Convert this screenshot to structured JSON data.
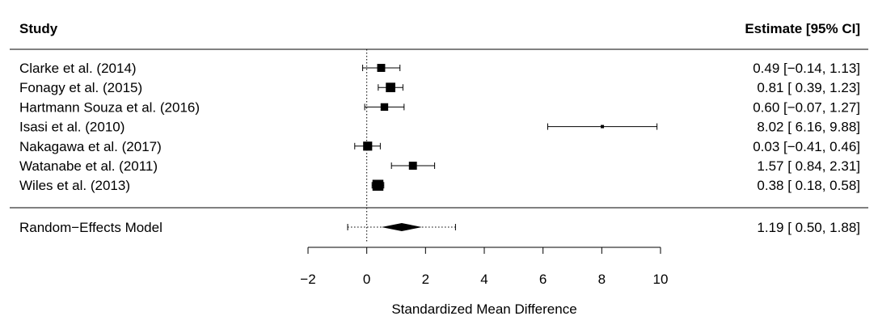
{
  "chart_data": {
    "type": "forest",
    "headers": {
      "study": "Study",
      "estimate": "Estimate [95% CI]"
    },
    "xlabel": "Standardized Mean Difference",
    "xlim": [
      -2,
      10
    ],
    "xticks": [
      "−2",
      "0",
      "2",
      "4",
      "6",
      "8",
      "10"
    ],
    "xtick_values": [
      -2,
      0,
      2,
      4,
      6,
      8,
      10
    ],
    "reference_line": 0,
    "studies": [
      {
        "label": "Clarke et al. (2014)",
        "est": 0.49,
        "lo": -0.14,
        "hi": 1.13,
        "weight": 0.55,
        "text": "0.49 [−0.14, 1.13]"
      },
      {
        "label": "Fonagy et al. (2015)",
        "est": 0.81,
        "lo": 0.39,
        "hi": 1.23,
        "weight": 0.65,
        "text": "0.81 [ 0.39, 1.23]"
      },
      {
        "label": "Hartmann Souza et al. (2016)",
        "est": 0.6,
        "lo": -0.07,
        "hi": 1.27,
        "weight": 0.52,
        "text": "0.60 [−0.07, 1.27]"
      },
      {
        "label": "Isasi et al. (2010)",
        "est": 8.02,
        "lo": 6.16,
        "hi": 9.88,
        "weight": 0.18,
        "text": "8.02 [ 6.16, 9.88]"
      },
      {
        "label": "Nakagawa et al. (2017)",
        "est": 0.03,
        "lo": -0.41,
        "hi": 0.46,
        "weight": 0.62,
        "text": "0.03 [−0.41, 0.46]"
      },
      {
        "label": "Watanabe et al. (2011)",
        "est": 1.57,
        "lo": 0.84,
        "hi": 2.31,
        "weight": 0.55,
        "text": "1.57 [ 0.84, 2.31]"
      },
      {
        "label": "Wiles et al. (2013)",
        "est": 0.38,
        "lo": 0.18,
        "hi": 0.58,
        "weight": 0.75,
        "text": "0.38 [ 0.18, 0.58]"
      }
    ],
    "summary": {
      "label": "Random−Effects Model",
      "est": 1.19,
      "lo": 0.5,
      "hi": 1.88,
      "pi_lo": -0.65,
      "pi_hi": 3.02,
      "text": "1.19 [ 0.50, 1.88]"
    }
  }
}
